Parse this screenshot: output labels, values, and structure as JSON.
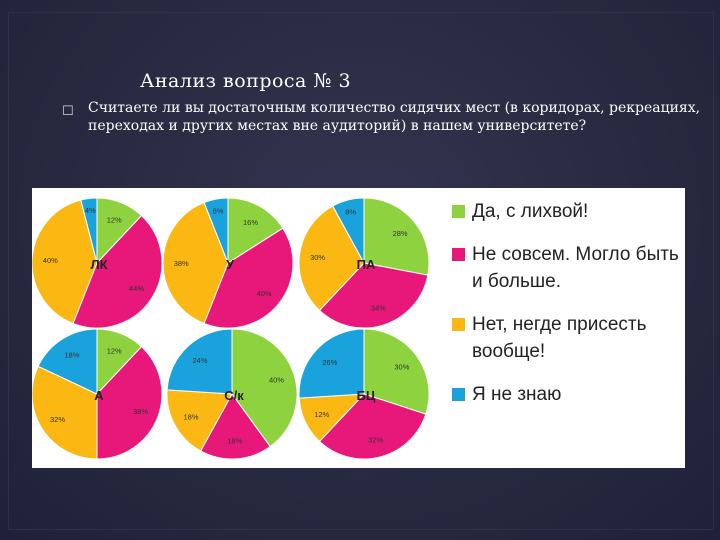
{
  "slide": {
    "title": "Анализ вопроса № 3",
    "bullet_icon": "checkbox-bullet-icon",
    "question": "Считаете ли вы достаточным количество сидячих мест (в коридорах, рекреациях, переходах и других местах вне аудиторий) в нашем университете?"
  },
  "colors": {
    "green": "#8ed33f",
    "pink": "#e8187b",
    "yellow": "#fbb812",
    "blue": "#1aa2dc"
  },
  "chart_data": {
    "type": "pie",
    "categories": [
      "Да, с лихвой!",
      "Не совсем. Могло быть и больше.",
      "Нет, негде присесть вообще!",
      "Я не знаю"
    ],
    "legend": [
      {
        "label": "Да, с лихвой!",
        "color": "#8ed33f"
      },
      {
        "label": "Не совсем. Могло быть и больше.",
        "color": "#e8187b"
      },
      {
        "label": "Нет, негде присесть вообще!",
        "color": "#fbb812"
      },
      {
        "label": "Я не знаю",
        "color": "#1aa2dc"
      }
    ],
    "legend_position": "right",
    "pies": [
      {
        "name": "ЛК",
        "values": [
          12,
          44,
          40,
          4
        ],
        "labels": [
          "12%",
          "44%",
          "40%",
          "4%"
        ]
      },
      {
        "name": "У",
        "values": [
          16,
          40,
          38,
          6
        ],
        "labels": [
          "16%",
          "40%",
          "38%",
          "6%"
        ]
      },
      {
        "name": "ПА",
        "values": [
          28,
          34,
          30,
          8
        ],
        "labels": [
          "28%",
          "34%",
          "30%",
          "8%"
        ]
      },
      {
        "name": "А",
        "values": [
          12,
          38,
          32,
          18
        ],
        "labels": [
          "12%",
          "38%",
          "32%",
          "18%"
        ]
      },
      {
        "name": "С/к",
        "values": [
          40,
          18,
          18,
          24
        ],
        "labels": [
          "40%",
          "18%",
          "18%",
          "24%"
        ]
      },
      {
        "name": "БЦ",
        "values": [
          30,
          32,
          12,
          26
        ],
        "labels": [
          "30%",
          "32%",
          "12%",
          "26%"
        ]
      }
    ]
  }
}
